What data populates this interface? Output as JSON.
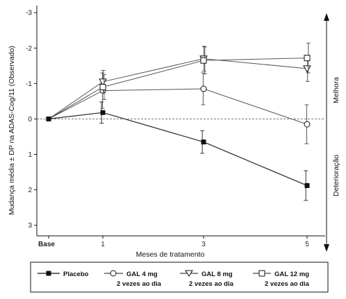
{
  "chart_data": {
    "type": "line",
    "ylabel": "Mudança média ± DP na ADAS-Cog/11 (Observado)",
    "xlabel": "Meses de tratamento",
    "x_ticks": [
      "Base",
      "1",
      "3",
      "5"
    ],
    "x": [
      0,
      1,
      3,
      5
    ],
    "ylim": [
      3.3,
      -3.2
    ],
    "y_ticks": [
      3,
      2,
      1,
      0,
      -1,
      -2,
      -3
    ],
    "y_inverted": true,
    "reference_line": 0,
    "side_labels": {
      "top": "Melhora",
      "bottom": "Deterioração"
    },
    "legend_position": "bottom",
    "series": [
      {
        "name": "Placebo",
        "marker": "filled-square",
        "line_color": "#333333",
        "values": [
          0,
          -0.18,
          0.65,
          1.88
        ],
        "err": [
          0,
          0.3,
          0.32,
          0.42
        ]
      },
      {
        "name": "GAL 4 mg 2 vezes ao dia",
        "marker": "circle",
        "line_color": "#555555",
        "values": [
          0,
          -0.8,
          -0.85,
          0.15
        ],
        "err": [
          0,
          0.5,
          0.45,
          0.55
        ]
      },
      {
        "name": "GAL 8 mg 2 vezes ao dia",
        "marker": "triangle-down",
        "line_color": "#555555",
        "values": [
          0,
          -1.05,
          -1.7,
          -1.42
        ],
        "err": [
          0,
          0.32,
          0.35,
          0.36
        ]
      },
      {
        "name": "GAL 12 mg 2 vezes ao dia",
        "marker": "square",
        "line_color": "#555555",
        "values": [
          0,
          -0.9,
          -1.65,
          -1.72
        ],
        "err": [
          0,
          0.35,
          0.38,
          0.42
        ]
      }
    ]
  },
  "legend": {
    "items": [
      {
        "line1": "Placebo",
        "line2": ""
      },
      {
        "line1": "GAL 4 mg",
        "line2": "2 vezes ao dia"
      },
      {
        "line1": "GAL 8 mg",
        "line2": "2 vezes ao dia"
      },
      {
        "line1": "GAL 12 mg",
        "line2": "2 vezes ao dia"
      }
    ]
  },
  "colors": {
    "ink": "#111111",
    "reference": "#777777"
  }
}
